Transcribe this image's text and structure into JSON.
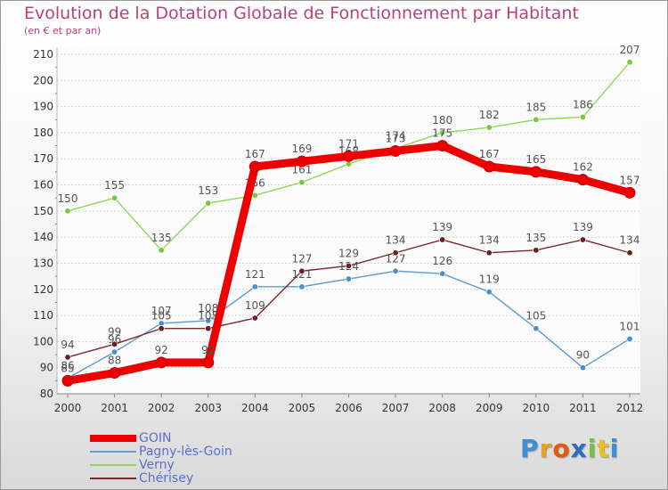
{
  "chart_data": {
    "type": "line",
    "title": "Evolution de la Dotation Globale de Fonctionnement par Habitant",
    "subtitle": "(en € et par an)",
    "categories": [
      "2000",
      "2001",
      "2002",
      "2003",
      "2004",
      "2005",
      "2006",
      "2007",
      "2008",
      "2009",
      "2010",
      "2011",
      "2012"
    ],
    "ylim": [
      80,
      210
    ],
    "yticks": [
      80,
      90,
      100,
      110,
      120,
      130,
      140,
      150,
      160,
      170,
      180,
      190,
      200,
      210
    ],
    "grid": true,
    "series": [
      {
        "name": "Pagny-lès-Goin",
        "color": "#5e9dd1",
        "marker": "#4a8fcf",
        "values": [
          86,
          96,
          107,
          108,
          121,
          121,
          124,
          127,
          126,
          119,
          105,
          90,
          101
        ]
      },
      {
        "name": "Verny",
        "color": "#8ed85a",
        "marker": "#76c93d",
        "values": [
          150,
          155,
          135,
          153,
          156,
          161,
          168,
          174,
          180,
          182,
          185,
          186,
          207
        ]
      },
      {
        "name": "Chérisey",
        "color": "#7a2a2a",
        "marker": "#6b1f1f",
        "values": [
          94,
          99,
          105,
          105,
          109,
          127,
          129,
          134,
          139,
          134,
          135,
          139,
          134
        ]
      },
      {
        "name": "GOIN",
        "color": "#ee0000",
        "marker": "#ee0000",
        "values": [
          85,
          88,
          92,
          92,
          167,
          169,
          171,
          173,
          175,
          167,
          165,
          162,
          157
        ]
      }
    ],
    "legend_order": [
      "GOIN",
      "Pagny-lès-Goin",
      "Verny",
      "Chérisey"
    ]
  },
  "logo": {
    "letters": [
      "P",
      "r",
      "o",
      "x",
      "i",
      "t",
      "i"
    ],
    "colors": [
      "#3a8fd6",
      "#e8a020",
      "#e05a10",
      "#2a6fc0",
      "#7ac043",
      "#e8c020",
      "#3a8fd6"
    ]
  }
}
